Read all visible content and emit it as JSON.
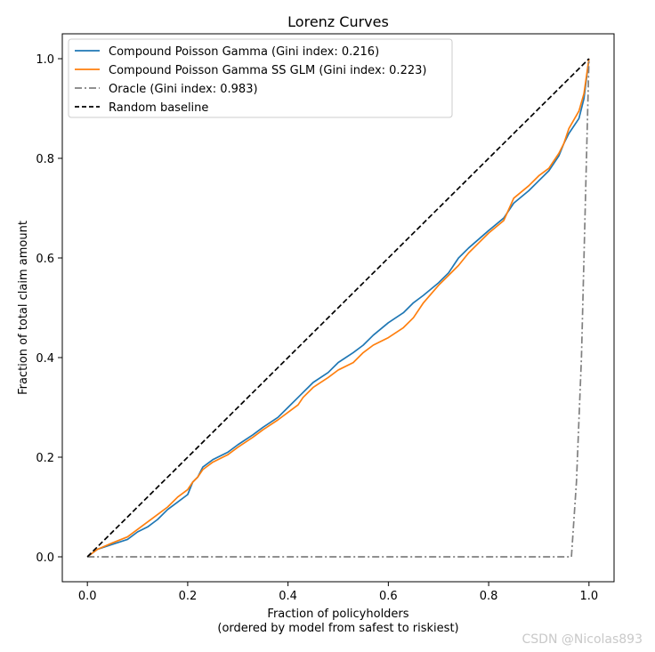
{
  "chart_data": {
    "type": "line",
    "title": "Lorenz Curves",
    "xlabel_line1": "Fraction of policyholders",
    "xlabel_line2": "(ordered by model from safest to riskiest)",
    "ylabel": "Fraction of total claim amount",
    "xlim": [
      -0.05,
      1.05
    ],
    "ylim": [
      -0.05,
      1.05
    ],
    "xticks": [
      0.0,
      0.2,
      0.4,
      0.6,
      0.8,
      1.0
    ],
    "yticks": [
      0.0,
      0.2,
      0.4,
      0.6,
      0.8,
      1.0
    ],
    "xtick_labels": [
      "0.0",
      "0.2",
      "0.4",
      "0.6",
      "0.8",
      "1.0"
    ],
    "ytick_labels": [
      "0.0",
      "0.2",
      "0.4",
      "0.6",
      "0.8",
      "1.0"
    ],
    "legend_position": "top-left",
    "series": [
      {
        "name": "Compound Poisson Gamma (Gini index: 0.216)",
        "color": "#1f77b4",
        "style": "solid",
        "x": [
          0.0,
          0.02,
          0.05,
          0.08,
          0.1,
          0.12,
          0.14,
          0.16,
          0.18,
          0.2,
          0.21,
          0.22,
          0.23,
          0.25,
          0.28,
          0.3,
          0.33,
          0.35,
          0.38,
          0.4,
          0.42,
          0.43,
          0.44,
          0.45,
          0.48,
          0.5,
          0.53,
          0.55,
          0.57,
          0.6,
          0.63,
          0.65,
          0.67,
          0.7,
          0.72,
          0.74,
          0.76,
          0.8,
          0.83,
          0.85,
          0.88,
          0.9,
          0.92,
          0.94,
          0.95,
          0.96,
          0.98,
          0.99,
          1.0
        ],
        "y": [
          0.0,
          0.015,
          0.025,
          0.035,
          0.05,
          0.06,
          0.075,
          0.095,
          0.11,
          0.125,
          0.15,
          0.16,
          0.18,
          0.195,
          0.21,
          0.225,
          0.245,
          0.26,
          0.28,
          0.3,
          0.32,
          0.33,
          0.34,
          0.35,
          0.37,
          0.39,
          0.41,
          0.425,
          0.445,
          0.47,
          0.49,
          0.51,
          0.525,
          0.55,
          0.57,
          0.6,
          0.62,
          0.655,
          0.68,
          0.71,
          0.735,
          0.755,
          0.775,
          0.805,
          0.83,
          0.85,
          0.88,
          0.92,
          1.0
        ]
      },
      {
        "name": "Compound Poisson Gamma SS GLM (Gini index: 0.223)",
        "color": "#ff7f0e",
        "style": "solid",
        "x": [
          0.0,
          0.02,
          0.05,
          0.08,
          0.1,
          0.12,
          0.14,
          0.16,
          0.18,
          0.2,
          0.21,
          0.22,
          0.23,
          0.25,
          0.28,
          0.3,
          0.33,
          0.35,
          0.38,
          0.4,
          0.42,
          0.43,
          0.45,
          0.48,
          0.5,
          0.53,
          0.55,
          0.57,
          0.6,
          0.63,
          0.65,
          0.67,
          0.7,
          0.72,
          0.74,
          0.76,
          0.78,
          0.8,
          0.83,
          0.85,
          0.88,
          0.9,
          0.92,
          0.94,
          0.95,
          0.96,
          0.98,
          0.99,
          1.0
        ],
        "y": [
          0.0,
          0.015,
          0.028,
          0.04,
          0.055,
          0.07,
          0.085,
          0.1,
          0.12,
          0.135,
          0.15,
          0.16,
          0.175,
          0.19,
          0.205,
          0.22,
          0.24,
          0.255,
          0.275,
          0.29,
          0.305,
          0.32,
          0.34,
          0.36,
          0.375,
          0.39,
          0.41,
          0.425,
          0.44,
          0.46,
          0.48,
          0.51,
          0.545,
          0.565,
          0.585,
          0.61,
          0.63,
          0.65,
          0.675,
          0.72,
          0.745,
          0.765,
          0.78,
          0.81,
          0.83,
          0.86,
          0.895,
          0.93,
          1.0
        ]
      },
      {
        "name": "Oracle (Gini index: 0.983)",
        "color": "#808080",
        "style": "dashdot",
        "x": [
          0.0,
          0.965,
          0.975,
          0.985,
          0.99,
          0.995,
          1.0
        ],
        "y": [
          0.0,
          0.0,
          0.15,
          0.4,
          0.6,
          0.8,
          1.0
        ]
      },
      {
        "name": "Random baseline",
        "color": "#000000",
        "style": "dashed",
        "x": [
          0.0,
          1.0
        ],
        "y": [
          0.0,
          1.0
        ]
      }
    ]
  },
  "watermark": "CSDN @Nicolas893"
}
